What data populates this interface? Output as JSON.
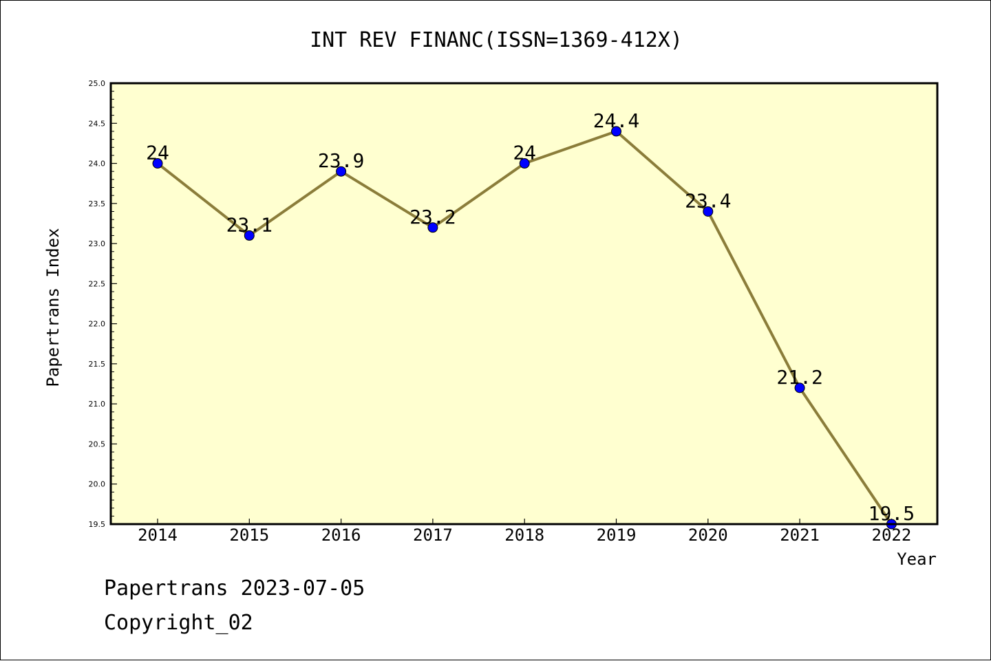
{
  "chart_data": {
    "type": "line",
    "title": "INT REV FINANC(ISSN=1369-412X)",
    "xlabel": "Year",
    "ylabel": "Papertrans Index",
    "x": [
      "2014",
      "2015",
      "2016",
      "2017",
      "2018",
      "2019",
      "2020",
      "2021",
      "2022"
    ],
    "series": [
      {
        "values": [
          24.0,
          23.1,
          23.9,
          23.2,
          24.0,
          24.4,
          23.4,
          21.2,
          19.5
        ],
        "data_labels": [
          "24",
          "23.1",
          "23.9",
          "23.2",
          "24",
          "24.4",
          "23.4",
          "21.2",
          "19.5"
        ]
      }
    ],
    "ylim": [
      19.5,
      25.0
    ],
    "yticks": [
      "19.5",
      "20.0",
      "20.5",
      "21.0",
      "21.5",
      "22.0",
      "22.5",
      "23.0",
      "23.5",
      "24.0",
      "24.5",
      "25.0"
    ],
    "grid": false,
    "legend": "none",
    "colors": {
      "plot_background": "#ffffd0",
      "line": "#8b7d3a",
      "marker": "#0000ff"
    }
  },
  "footer": {
    "line1": "Papertrans 2023-07-05",
    "line2": "Copyright_02"
  }
}
